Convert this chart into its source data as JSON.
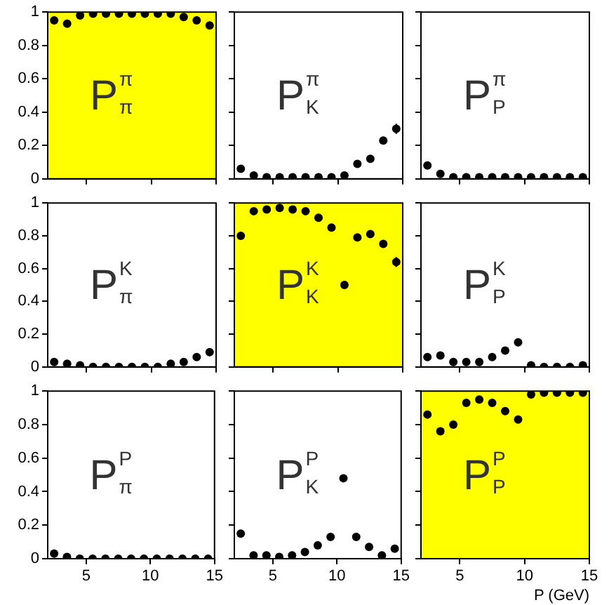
{
  "chart_data": [
    {
      "type": "scatter",
      "x": [
        2.5,
        3.5,
        4.5,
        5.5,
        6.5,
        7.5,
        8.5,
        9.5,
        10.5,
        11.5,
        12.5,
        13.5,
        14.5
      ],
      "series": [
        {
          "color": "#000000",
          "values": [
            0.95,
            0.93,
            0.98,
            0.99,
            0.99,
            0.99,
            0.99,
            0.99,
            0.99,
            0.99,
            0.97,
            0.95,
            0.92
          ]
        }
      ],
      "xlim": [
        2,
        15
      ],
      "ylim": [
        0,
        1
      ],
      "xticks": [
        5,
        10,
        15
      ],
      "yticks": [
        0,
        0.2,
        0.4,
        0.6,
        0.8,
        1
      ],
      "marker": "circle",
      "grid": false,
      "tick_labels": "y",
      "bands": [
        {
          "axis": "y",
          "from": 0,
          "to": 1,
          "color": "#ffff00"
        }
      ],
      "annotations": [
        "P$^{π}$$_{π}$"
      ]
    },
    {
      "type": "scatter",
      "x": [
        2.5,
        3.5,
        4.5,
        5.5,
        6.5,
        7.5,
        8.5,
        9.5,
        10.5,
        11.5,
        12.5,
        13.5,
        14.5
      ],
      "series": [
        {
          "color": "#000000",
          "values": [
            0.06,
            0.02,
            0.01,
            0.01,
            0.01,
            0.01,
            0.01,
            0.01,
            0.02,
            0.09,
            0.12,
            0.23,
            0.3
          ],
          "errors": [
            null,
            null,
            null,
            null,
            null,
            null,
            null,
            null,
            null,
            null,
            null,
            0.02,
            0.03
          ]
        }
      ],
      "xlim": [
        2,
        15
      ],
      "ylim": [
        0,
        1
      ],
      "xticks": [
        5,
        10,
        15
      ],
      "yticks": [
        0,
        0.2,
        0.4,
        0.6,
        0.8,
        1
      ],
      "marker": "circle",
      "grid": false,
      "tick_labels": false,
      "annotations": [
        "P$^{π}$$_{K}$"
      ]
    },
    {
      "type": "scatter",
      "x": [
        2.5,
        3.5,
        4.5,
        5.5,
        6.5,
        7.5,
        8.5,
        9.5,
        10.5,
        11.5,
        12.5,
        13.5,
        14.5
      ],
      "series": [
        {
          "color": "#000000",
          "values": [
            0.08,
            0.03,
            0.01,
            0.01,
            0.01,
            0.01,
            0.01,
            0.01,
            0.01,
            0.01,
            0.01,
            0.01,
            0.01
          ]
        }
      ],
      "xlim": [
        2,
        15
      ],
      "ylim": [
        0,
        1
      ],
      "xticks": [
        5,
        10,
        15
      ],
      "yticks": [
        0,
        0.2,
        0.4,
        0.6,
        0.8,
        1
      ],
      "marker": "circle",
      "grid": false,
      "tick_labels": false,
      "annotations": [
        "P$^{π}$$_{P}$"
      ]
    },
    {
      "type": "scatter",
      "x": [
        2.5,
        3.5,
        4.5,
        5.5,
        6.5,
        7.5,
        8.5,
        9.5,
        10.5,
        11.5,
        12.5,
        13.5,
        14.5
      ],
      "series": [
        {
          "color": "#000000",
          "values": [
            0.03,
            0.02,
            0.01,
            0,
            0,
            0,
            0,
            0,
            0,
            0.02,
            0.03,
            0.06,
            0.09
          ]
        }
      ],
      "xlim": [
        2,
        15
      ],
      "ylim": [
        0,
        1
      ],
      "xticks": [
        5,
        10,
        15
      ],
      "yticks": [
        0,
        0.2,
        0.4,
        0.6,
        0.8,
        1
      ],
      "marker": "circle",
      "grid": false,
      "tick_labels": "y",
      "annotations": [
        "P$^{K}$$_{π}$"
      ]
    },
    {
      "type": "scatter",
      "x": [
        2.5,
        3.5,
        4.5,
        5.5,
        6.5,
        7.5,
        8.5,
        9.5,
        10.5,
        11.5,
        12.5,
        13.5,
        14.5
      ],
      "series": [
        {
          "color": "#000000",
          "values": [
            0.8,
            0.95,
            0.96,
            0.97,
            0.96,
            0.95,
            0.91,
            0.85,
            0.5,
            0.79,
            0.81,
            0.75,
            0.64
          ],
          "errors": [
            null,
            null,
            null,
            null,
            null,
            null,
            null,
            null,
            null,
            null,
            null,
            0.02,
            0.03
          ]
        }
      ],
      "xlim": [
        2,
        15
      ],
      "ylim": [
        0,
        1
      ],
      "xticks": [
        5,
        10,
        15
      ],
      "yticks": [
        0,
        0.2,
        0.4,
        0.6,
        0.8,
        1
      ],
      "marker": "circle",
      "grid": false,
      "tick_labels": false,
      "bands": [
        {
          "axis": "y",
          "from": 0,
          "to": 1,
          "color": "#ffff00"
        }
      ],
      "annotations": [
        "P$^{K}$$_{K}$"
      ]
    },
    {
      "type": "scatter",
      "x": [
        2.5,
        3.5,
        4.5,
        5.5,
        6.5,
        7.5,
        8.5,
        9.5,
        10.5,
        11.5,
        12.5,
        13.5,
        14.5
      ],
      "series": [
        {
          "color": "#000000",
          "values": [
            0.06,
            0.07,
            0.03,
            0.03,
            0.03,
            0.06,
            0.1,
            0.15,
            0.01,
            0,
            0,
            0,
            0.01
          ]
        }
      ],
      "xlim": [
        2,
        15
      ],
      "ylim": [
        0,
        1
      ],
      "xticks": [
        5,
        10,
        15
      ],
      "yticks": [
        0,
        0.2,
        0.4,
        0.6,
        0.8,
        1
      ],
      "marker": "circle",
      "grid": false,
      "tick_labels": false,
      "annotations": [
        "P$^{K}$$_{P}$"
      ]
    },
    {
      "type": "scatter",
      "x": [
        2.5,
        3.5,
        4.5,
        5.5,
        6.5,
        7.5,
        8.5,
        9.5,
        10.5,
        11.5,
        12.5,
        13.5,
        14.5
      ],
      "series": [
        {
          "color": "#000000",
          "values": [
            0.03,
            0.01,
            0,
            0,
            0,
            0,
            0,
            0,
            0,
            0,
            0,
            0,
            0
          ]
        }
      ],
      "xlim": [
        2,
        15
      ],
      "ylim": [
        0,
        1
      ],
      "xticks": [
        5,
        10,
        15
      ],
      "yticks": [
        0,
        0.2,
        0.4,
        0.6,
        0.8,
        1
      ],
      "marker": "circle",
      "grid": false,
      "annotations": [
        "P$^{P}$$_{π}$"
      ]
    },
    {
      "type": "scatter",
      "x": [
        2.5,
        3.5,
        4.5,
        5.5,
        6.5,
        7.5,
        8.5,
        9.5,
        10.5,
        11.5,
        12.5,
        13.5,
        14.5
      ],
      "series": [
        {
          "color": "#000000",
          "values": [
            0.15,
            0.02,
            0.02,
            0.01,
            0.02,
            0.04,
            0.08,
            0.13,
            0.48,
            0.13,
            0.07,
            0.02,
            0.06
          ]
        }
      ],
      "xlim": [
        2,
        15
      ],
      "ylim": [
        0,
        1
      ],
      "xticks": [
        5,
        10,
        15
      ],
      "yticks": [
        0,
        0.2,
        0.4,
        0.6,
        0.8,
        1
      ],
      "marker": "circle",
      "grid": false,
      "tick_labels": "x",
      "annotations": [
        "P$^{P}$$_{K}$"
      ]
    },
    {
      "type": "scatter",
      "x": [
        2.5,
        3.5,
        4.5,
        5.5,
        6.5,
        7.5,
        8.5,
        9.5,
        10.5,
        11.5,
        12.5,
        13.5,
        14.5
      ],
      "series": [
        {
          "color": "#000000",
          "values": [
            0.86,
            0.76,
            0.8,
            0.93,
            0.95,
            0.93,
            0.88,
            0.83,
            0.98,
            0.99,
            0.99,
            0.99,
            0.99
          ]
        }
      ],
      "xlim": [
        2,
        15
      ],
      "ylim": [
        0,
        1
      ],
      "xticks": [
        5,
        10,
        15
      ],
      "yticks": [
        0,
        0.2,
        0.4,
        0.6,
        0.8,
        1
      ],
      "marker": "circle",
      "grid": false,
      "tick_labels": "x",
      "xlabel": "P (GeV)",
      "bands": [
        {
          "axis": "y",
          "from": 0,
          "to": 1,
          "color": "#ffff00"
        }
      ],
      "annotations": [
        "P$^{P}$$_{P}$"
      ]
    }
  ]
}
